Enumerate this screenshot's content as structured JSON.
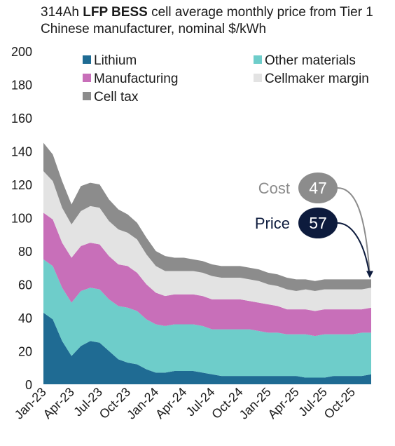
{
  "title": {
    "prefix": "314Ah ",
    "bold": "LFP BESS",
    "rest": " cell average monthly  price from Tier 1 Chinese manufacturer, nominal  $/kWh"
  },
  "colors": {
    "lithium": "#1f6b93",
    "other_materials": "#6ecdca",
    "manufacturing": "#c86fb9",
    "cellmaker_margin": "#e3e3e3",
    "cell_tax": "#8c8c8c",
    "cost_bubble": "#8c8c8c",
    "price_bubble": "#0d1b3d",
    "price_label": "#0d1b3d",
    "cost_label": "#8c8c8c"
  },
  "annotations": {
    "cost_label": "Cost",
    "cost_value": "47",
    "price_label": "Price",
    "price_value": "57"
  },
  "chart_data": {
    "type": "area",
    "stacked": true,
    "x": [
      "Jan-23",
      "Feb-23",
      "Mar-23",
      "Apr-23",
      "May-23",
      "Jun-23",
      "Jul-23",
      "Aug-23",
      "Sep-23",
      "Oct-23",
      "Nov-23",
      "Dec-23",
      "Jan-24",
      "Feb-24",
      "Mar-24",
      "Apr-24",
      "May-24",
      "Jun-24",
      "Jul-24",
      "Aug-24",
      "Sep-24",
      "Oct-24",
      "Nov-24",
      "Dec-24",
      "Jan-25",
      "Feb-25",
      "Mar-25",
      "Apr-25",
      "May-25",
      "Jun-25",
      "Jul-25",
      "Aug-25",
      "Sep-25",
      "Oct-25",
      "Nov-25",
      "Dec-25"
    ],
    "xticks": [
      "Jan-23",
      "Apr-23",
      "Jul-23",
      "Oct-23",
      "Jan-24",
      "Apr-24",
      "Jul-24",
      "Oct-24",
      "Jan-25",
      "Apr-25",
      "Jul-25",
      "Oct-25"
    ],
    "ylim": [
      0,
      200
    ],
    "yticks": [
      0,
      20,
      40,
      60,
      80,
      100,
      120,
      140,
      160,
      180,
      200
    ],
    "legend_position": "top",
    "grid": false,
    "series": [
      {
        "name": "Lithium",
        "key": "lithium",
        "values": [
          43,
          39,
          26,
          17,
          23,
          26,
          25,
          20,
          15,
          13,
          12,
          9,
          7,
          7,
          8,
          8,
          8,
          7,
          6,
          5,
          5,
          5,
          5,
          5,
          5,
          5,
          5,
          5,
          4,
          4,
          4,
          5,
          5,
          5,
          5,
          6
        ]
      },
      {
        "name": "Other materials",
        "key": "other_materials",
        "values": [
          32,
          32,
          32,
          32,
          33,
          32,
          32,
          31,
          32,
          33,
          32,
          30,
          29,
          28,
          28,
          28,
          28,
          28,
          27,
          28,
          28,
          28,
          28,
          27,
          26,
          26,
          25,
          25,
          26,
          25,
          26,
          25,
          25,
          25,
          26,
          25
        ]
      },
      {
        "name": "Manufacturing",
        "key": "manufacturing",
        "values": [
          28,
          28,
          27,
          27,
          27,
          27,
          27,
          26,
          25,
          25,
          23,
          21,
          19,
          18,
          18,
          18,
          18,
          18,
          18,
          18,
          18,
          18,
          17,
          17,
          17,
          16,
          15,
          15,
          15,
          15,
          15,
          15,
          15,
          15,
          14,
          15
        ]
      },
      {
        "name": "Cellmaker margin",
        "key": "cellmaker_margin",
        "values": [
          25,
          23,
          21,
          20,
          21,
          22,
          22,
          21,
          21,
          20,
          20,
          18,
          16,
          15,
          14,
          14,
          14,
          14,
          14,
          13,
          13,
          13,
          13,
          13,
          12,
          12,
          12,
          11,
          12,
          12,
          12,
          12,
          12,
          12,
          12,
          12
        ]
      },
      {
        "name": "Cell tax",
        "key": "cell_tax",
        "values": [
          17,
          16,
          16,
          12,
          15,
          14,
          14,
          13,
          12,
          11,
          10,
          10,
          9,
          9,
          8,
          8,
          7,
          7,
          7,
          7,
          7,
          7,
          7,
          7,
          7,
          7,
          7,
          7,
          6,
          6,
          6,
          6,
          6,
          6,
          6,
          5
        ]
      }
    ],
    "legend_entries": [
      "Lithium",
      "Other materials",
      "Manufacturing",
      "Cellmaker margin",
      "Cell tax"
    ]
  }
}
